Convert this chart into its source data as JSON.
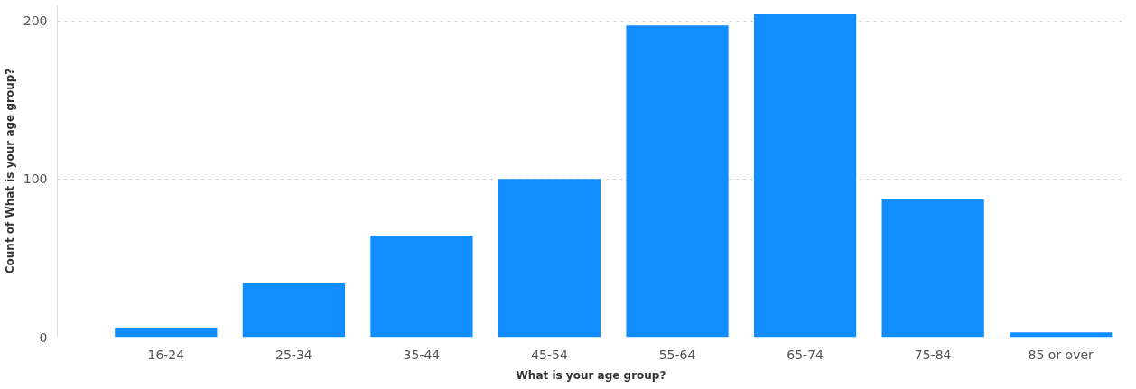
{
  "chart_data": {
    "type": "bar",
    "xlabel": "What is your age group?",
    "ylabel": "Count of What is your age group?",
    "categories": [
      "16-24",
      "25-34",
      "35-44",
      "45-54",
      "55-64",
      "65-74",
      "75-84",
      "85 or over"
    ],
    "values": [
      6,
      34,
      64,
      100,
      197,
      204,
      87,
      3
    ],
    "color": "#118dff",
    "ylim": [
      0,
      210
    ],
    "yticks": [
      0,
      100,
      200
    ],
    "grid": "y"
  }
}
